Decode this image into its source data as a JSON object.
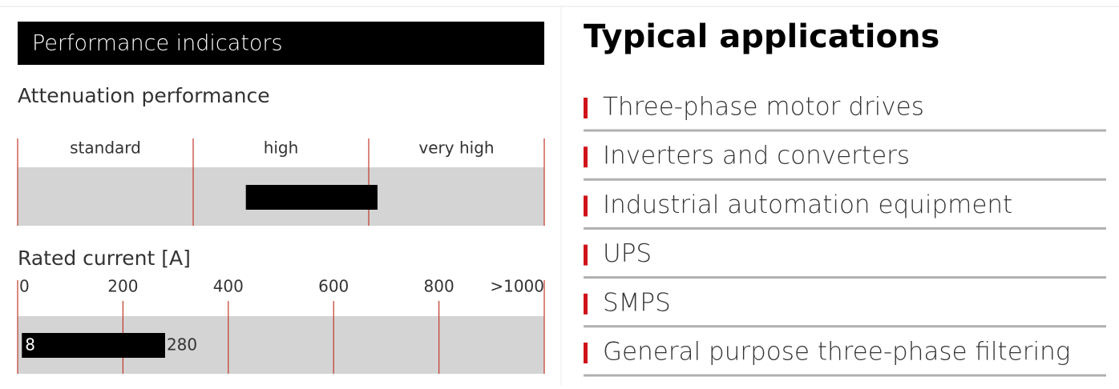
{
  "header": {
    "title": "Performance indicators"
  },
  "attenuation": {
    "label": "Attenuation performance",
    "categories": [
      "standard",
      "high",
      "very high"
    ],
    "xlim": [
      0,
      3
    ],
    "range": [
      1.3,
      2.05
    ]
  },
  "current": {
    "label": "Rated current [A]",
    "xlim": [
      0,
      1000
    ],
    "xticks": [
      0,
      200,
      400,
      600,
      800,
      {
        "value": 1000,
        "label": ">1000"
      }
    ],
    "values": [
      8,
      280
    ]
  },
  "applications": {
    "title": "Typical applications",
    "items": [
      "Three-phase motor drives",
      "Inverters and converters",
      "Industrial automation equipment",
      "UPS",
      "SMPS",
      "General purpose three-phase filtering"
    ]
  }
}
